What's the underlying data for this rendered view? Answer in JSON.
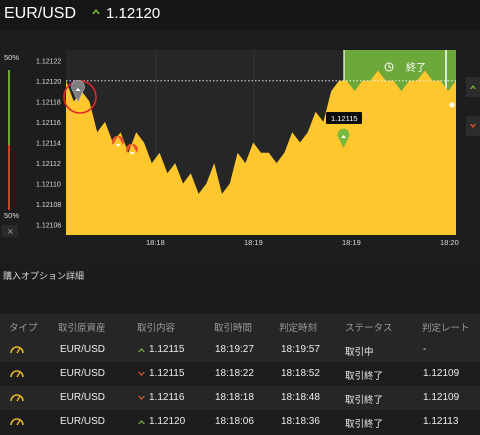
{
  "header": {
    "pair": "EUR/USD",
    "current_rate": "1.12120",
    "direction_icon": "up-arrow-icon"
  },
  "chart": {
    "left_scale_top": "50%",
    "left_scale_bottom": "50%",
    "close_button": "×",
    "price_labels": [
      "1.12122",
      "1.12120",
      "1.12118",
      "1.12116",
      "1.12114",
      "1.12112",
      "1.12110",
      "1.12108",
      "1.12106"
    ],
    "time_labels": [
      "18:18",
      "18:19",
      "18:19",
      "18:20"
    ],
    "marker_label": "1.12115",
    "end_label": "終了",
    "colors": {
      "area": "#ffc72e",
      "up": "#78b83c",
      "down": "#e8562c",
      "end_zone": "#6da93a"
    }
  },
  "chart_data": {
    "type": "area",
    "x": [
      0,
      2,
      4,
      6,
      8,
      10,
      12,
      14,
      16,
      18,
      20,
      22,
      24,
      26,
      28,
      30,
      32,
      34,
      36,
      38,
      40,
      42,
      44,
      46,
      48,
      50,
      52,
      54,
      56,
      58,
      60,
      62,
      64,
      66,
      68,
      70,
      72,
      74,
      76,
      78,
      80,
      82,
      84,
      86,
      88,
      90,
      92,
      94,
      96,
      98,
      100
    ],
    "y": [
      1.1212,
      1.12118,
      1.12119,
      1.12118,
      1.12115,
      1.12116,
      1.12114,
      1.12115,
      1.12113,
      1.12115,
      1.12114,
      1.12112,
      1.12113,
      1.12111,
      1.12112,
      1.1211,
      1.12111,
      1.12109,
      1.1211,
      1.12112,
      1.12109,
      1.1211,
      1.12113,
      1.12112,
      1.12114,
      1.12113,
      1.12113,
      1.12112,
      1.12113,
      1.12115,
      1.12114,
      1.12115,
      1.12117,
      1.12116,
      1.12119,
      1.1212,
      1.1212,
      1.12119,
      1.1212,
      1.1212,
      1.12121,
      1.1212,
      1.1212,
      1.12119,
      1.1212,
      1.1212,
      1.12121,
      1.1212,
      1.1212,
      1.12119,
      1.1212
    ],
    "ylim": [
      1.12105,
      1.12123
    ],
    "reference_line": 1.1212,
    "x_ticks": [
      "18:18",
      "18:19",
      "18:19",
      "18:20"
    ],
    "grid": true,
    "legend": "none"
  },
  "section": {
    "title": "購入オプション詳細"
  },
  "table": {
    "columns": [
      "タイプ",
      "取引原資産",
      "取引内容",
      "取引時間",
      "判定時刻",
      "ステータス",
      "判定レート"
    ],
    "rows": [
      {
        "type_icon": "gauge-icon",
        "asset": "EUR/USD",
        "dir": "up",
        "rate": "1.12115",
        "trade_time": "18:19:27",
        "judge_time": "18:19:57",
        "status": "取引中",
        "judge_rate": "-"
      },
      {
        "type_icon": "gauge-icon",
        "asset": "EUR/USD",
        "dir": "down",
        "rate": "1.12115",
        "trade_time": "18:18:22",
        "judge_time": "18:18:52",
        "status": "取引終了",
        "judge_rate": "1.12109"
      },
      {
        "type_icon": "gauge-icon",
        "asset": "EUR/USD",
        "dir": "down",
        "rate": "1.12116",
        "trade_time": "18:18:18",
        "judge_time": "18:18:48",
        "status": "取引終了",
        "judge_rate": "1.12109"
      },
      {
        "type_icon": "gauge-icon",
        "asset": "EUR/USD",
        "dir": "up",
        "rate": "1.12120",
        "trade_time": "18:18:06",
        "judge_time": "18:18:36",
        "status": "取引終了",
        "judge_rate": "1.12113"
      }
    ]
  }
}
